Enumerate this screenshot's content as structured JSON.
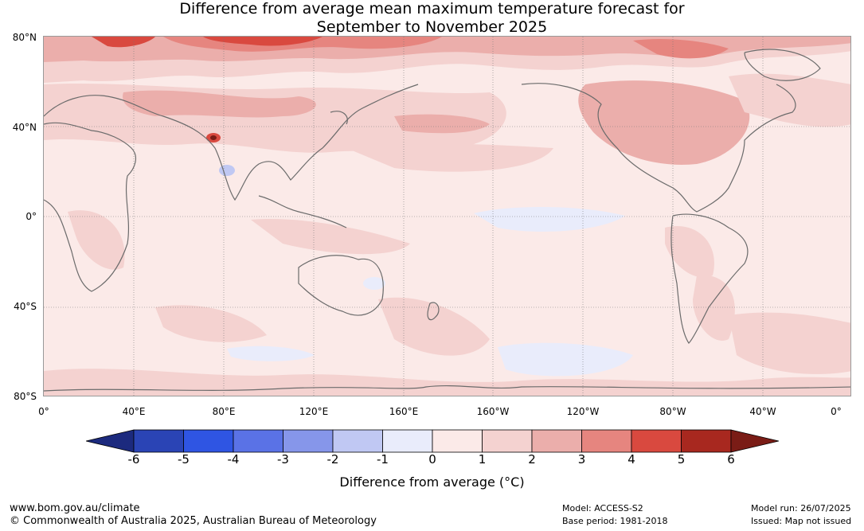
{
  "title_line1": "Difference from average mean maximum temperature forecast for",
  "title_line2": "September to November 2025",
  "map": {
    "lat_labels": [
      "80°N",
      "40°N",
      "0°",
      "40°S",
      "80°S"
    ],
    "lon_labels": [
      "0°",
      "40°E",
      "80°E",
      "120°E",
      "160°E",
      "160°W",
      "120°W",
      "80°W",
      "40°W",
      "0°"
    ],
    "base_color": "#fbeae8",
    "anomaly_regions": [
      {
        "name": "arctic-warm",
        "value": 4
      },
      {
        "name": "north-america-warm",
        "value": 2
      },
      {
        "name": "himalaya-hotspot",
        "value": 5
      },
      {
        "name": "equatorial-pacific-cool",
        "value": -1
      },
      {
        "name": "southern-ocean-cool",
        "value": -1
      },
      {
        "name": "india-cool",
        "value": -1
      }
    ]
  },
  "colorbar": {
    "ticks": [
      "-6",
      "-5",
      "-4",
      "-3",
      "-2",
      "-1",
      "0",
      "1",
      "2",
      "3",
      "4",
      "5",
      "6"
    ],
    "colors": [
      "#1c2a7e",
      "#2a44b5",
      "#2f55e3",
      "#5a72e6",
      "#8696ea",
      "#c0c8f3",
      "#e9ecfb",
      "#fbeae8",
      "#f4d2d0",
      "#ebaeab",
      "#e6857f",
      "#d9493f",
      "#a8281f",
      "#7a1c16"
    ],
    "label": "Difference from average (°C)"
  },
  "footer": {
    "url": "www.bom.gov.au/climate",
    "copyright": "© Commonwealth of Australia 2025, Australian Bureau of Meteorology",
    "model": "Model: ACCESS-S2",
    "base_period": "Base period: 1981-2018",
    "model_run": "Model run: 26/07/2025",
    "issued": "Issued: Map not issued"
  }
}
